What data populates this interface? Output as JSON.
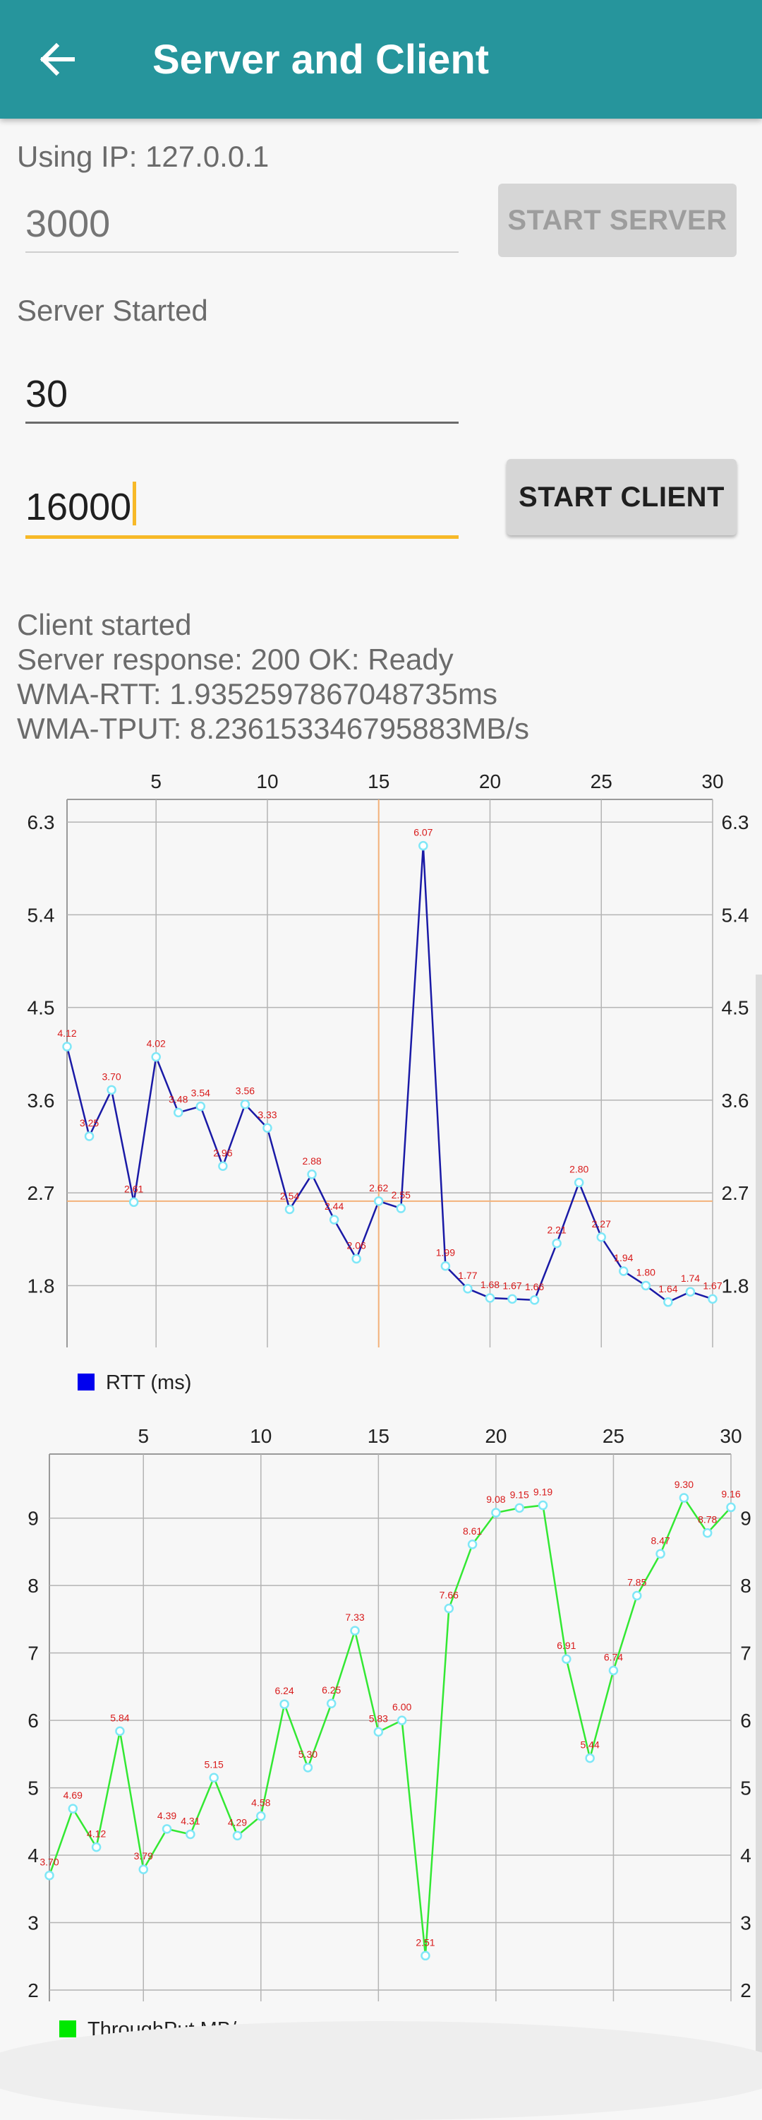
{
  "app_bar": {
    "title": "Server and Client",
    "back_icon": "arrow-left-icon"
  },
  "server": {
    "ip_label": "Using IP: 127.0.0.1",
    "port_placeholder": "3000",
    "start_button": "START SERVER",
    "status": "Server Started"
  },
  "client": {
    "count_value": "30",
    "size_value": "16000",
    "start_button": "START CLIENT",
    "status_lines": [
      "Client started",
      "Server response: 200 OK: Ready",
      "WMA-RTT: 1.9352597867048735ms",
      "WMA-TPUT: 8.236153346795883MB/s"
    ]
  },
  "colors": {
    "app_bar": "#26959c",
    "rtt_line": "#1a1aa6",
    "rtt_legend": "#0000ee",
    "tput_line": "#33e833",
    "tput_legend": "#00e800",
    "point": "#7fe7f7",
    "value_label": "#d81b1b",
    "highlight": "#f3b27a",
    "focus_underline": "#f7b928"
  },
  "chart_data": [
    {
      "type": "line",
      "x": [
        1,
        2,
        3,
        4,
        5,
        6,
        7,
        8,
        9,
        10,
        11,
        12,
        13,
        14,
        15,
        16,
        17,
        18,
        19,
        20,
        21,
        22,
        23,
        24,
        25,
        26,
        27,
        28,
        29,
        30
      ],
      "x_ticks": [
        5,
        10,
        15,
        20,
        25,
        30
      ],
      "y_ticks": [
        1.8,
        2.7,
        3.6,
        4.5,
        5.4,
        6.3
      ],
      "ylim": [
        1.57,
        6.52
      ],
      "series": [
        {
          "name": "RTT (ms)",
          "values": [
            4.12,
            3.25,
            3.7,
            2.61,
            4.02,
            3.48,
            3.54,
            2.96,
            3.56,
            3.33,
            2.54,
            2.88,
            2.44,
            2.06,
            2.62,
            2.55,
            6.07,
            1.99,
            1.77,
            1.68,
            1.67,
            1.66,
            2.21,
            2.8,
            2.27,
            1.94,
            1.8,
            1.64,
            1.74,
            1.67
          ]
        }
      ],
      "highlight": {
        "x": 15,
        "y": 2.62
      },
      "legend": "bottom-left",
      "grid": true
    },
    {
      "type": "line",
      "x": [
        1,
        2,
        3,
        4,
        5,
        6,
        7,
        8,
        9,
        10,
        11,
        12,
        13,
        14,
        15,
        16,
        17,
        18,
        19,
        20,
        21,
        22,
        23,
        24,
        25,
        26,
        27,
        28,
        29,
        30
      ],
      "x_ticks": [
        5,
        10,
        15,
        20,
        25,
        30
      ],
      "y_ticks": [
        2,
        3,
        4,
        5,
        6,
        7,
        8,
        9
      ],
      "ylim": [
        2,
        9.95
      ],
      "series": [
        {
          "name": "ThroughPut MB/s",
          "values": [
            3.7,
            4.69,
            4.12,
            5.84,
            3.79,
            4.39,
            4.31,
            5.15,
            4.29,
            4.58,
            6.24,
            5.3,
            6.25,
            7.33,
            5.83,
            6.0,
            2.51,
            7.66,
            8.61,
            9.08,
            9.15,
            9.19,
            6.91,
            5.44,
            6.74,
            7.85,
            8.47,
            9.3,
            8.78,
            9.16
          ]
        }
      ],
      "legend": "bottom-left",
      "grid": true
    }
  ]
}
